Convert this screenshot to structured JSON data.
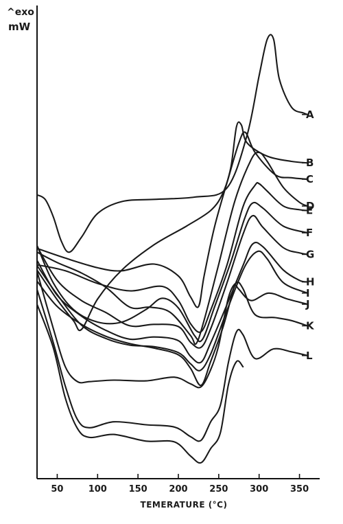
{
  "chart_data": {
    "type": "line",
    "ylabel": "^exo mW",
    "ylabel_line1": "^exo",
    "ylabel_line2": "mW",
    "xlabel": "TEMERATURE (°C)",
    "x_ticks": [
      50,
      100,
      150,
      200,
      250,
      300,
      350
    ],
    "xlim": [
      25,
      375
    ],
    "y_ticks_labeled": false,
    "grid": false,
    "legend": "labels at right end of each curve",
    "series": [
      {
        "name": "A",
        "points": [
          [
            25,
            -0.55
          ],
          [
            35,
            -0.61
          ],
          [
            45,
            -0.84
          ],
          [
            55,
            -1.17
          ],
          [
            65,
            -1.32
          ],
          [
            80,
            -1.12
          ],
          [
            100,
            -0.8
          ],
          [
            130,
            -0.64
          ],
          [
            170,
            -0.61
          ],
          [
            220,
            -0.58
          ],
          [
            260,
            -0.46
          ],
          [
            285,
            0.25
          ],
          [
            300,
            1.05
          ],
          [
            310,
            1.54
          ],
          [
            318,
            1.54
          ],
          [
            325,
            1.01
          ],
          [
            340,
            0.63
          ],
          [
            355,
            0.55
          ],
          [
            360,
            0.53
          ]
        ]
      },
      {
        "name": "B",
        "points": [
          [
            25,
            -1.56
          ],
          [
            50,
            -1.96
          ],
          [
            70,
            -2.24
          ],
          [
            80,
            -2.36
          ],
          [
            100,
            -1.95
          ],
          [
            130,
            -1.56
          ],
          [
            170,
            -1.22
          ],
          [
            210,
            -0.97
          ],
          [
            240,
            -0.76
          ],
          [
            255,
            -0.53
          ],
          [
            265,
            -0.18
          ],
          [
            272,
            0.37
          ],
          [
            278,
            0.39
          ],
          [
            285,
            0.15
          ],
          [
            310,
            -0.03
          ],
          [
            340,
            -0.1
          ],
          [
            360,
            -0.12
          ]
        ]
      },
      {
        "name": "C",
        "points": [
          [
            25,
            -1.27
          ],
          [
            60,
            -1.4
          ],
          [
            100,
            -1.53
          ],
          [
            130,
            -1.57
          ],
          [
            170,
            -1.48
          ],
          [
            200,
            -1.64
          ],
          [
            215,
            -1.92
          ],
          [
            225,
            -2.05
          ],
          [
            232,
            -1.63
          ],
          [
            245,
            -0.97
          ],
          [
            262,
            -0.32
          ],
          [
            275,
            0.15
          ],
          [
            283,
            0.29
          ],
          [
            295,
            0.02
          ],
          [
            320,
            -0.28
          ],
          [
            340,
            -0.32
          ],
          [
            360,
            -0.34
          ]
        ]
      },
      {
        "name": "D",
        "points": [
          [
            25,
            -1.32
          ],
          [
            50,
            -1.46
          ],
          [
            80,
            -1.6
          ],
          [
            110,
            -1.79
          ],
          [
            140,
            -2.06
          ],
          [
            165,
            -2.06
          ],
          [
            190,
            -2.13
          ],
          [
            215,
            -2.44
          ],
          [
            222,
            -2.55
          ],
          [
            232,
            -2.23
          ],
          [
            250,
            -1.48
          ],
          [
            270,
            -0.63
          ],
          [
            290,
            -0.08
          ],
          [
            300,
            0.02
          ],
          [
            310,
            -0.1
          ],
          [
            330,
            -0.45
          ],
          [
            350,
            -0.65
          ],
          [
            360,
            -0.7
          ]
        ]
      },
      {
        "name": "E",
        "points": [
          [
            25,
            -1.49
          ],
          [
            60,
            -1.57
          ],
          [
            100,
            -1.74
          ],
          [
            140,
            -1.84
          ],
          [
            180,
            -1.78
          ],
          [
            200,
            -1.97
          ],
          [
            215,
            -2.28
          ],
          [
            228,
            -2.39
          ],
          [
            240,
            -2.1
          ],
          [
            260,
            -1.5
          ],
          [
            280,
            -0.71
          ],
          [
            295,
            -0.42
          ],
          [
            300,
            -0.4
          ],
          [
            310,
            -0.5
          ],
          [
            330,
            -0.7
          ],
          [
            350,
            -0.75
          ],
          [
            360,
            -0.76
          ]
        ]
      },
      {
        "name": "F",
        "points": [
          [
            25,
            -1.23
          ],
          [
            45,
            -1.73
          ],
          [
            70,
            -2.09
          ],
          [
            100,
            -2.26
          ],
          [
            130,
            -2.26
          ],
          [
            160,
            -2.09
          ],
          [
            180,
            -1.94
          ],
          [
            200,
            -2.07
          ],
          [
            220,
            -2.44
          ],
          [
            230,
            -2.49
          ],
          [
            245,
            -2.05
          ],
          [
            265,
            -1.45
          ],
          [
            282,
            -0.87
          ],
          [
            292,
            -0.66
          ],
          [
            305,
            -0.73
          ],
          [
            330,
            -0.97
          ],
          [
            360,
            -1.06
          ]
        ]
      },
      {
        "name": "G",
        "points": [
          [
            25,
            -1.24
          ],
          [
            50,
            -1.7
          ],
          [
            80,
            -1.97
          ],
          [
            110,
            -2.13
          ],
          [
            140,
            -2.31
          ],
          [
            170,
            -2.29
          ],
          [
            200,
            -2.32
          ],
          [
            215,
            -2.53
          ],
          [
            228,
            -2.6
          ],
          [
            240,
            -2.35
          ],
          [
            260,
            -1.74
          ],
          [
            280,
            -1.08
          ],
          [
            292,
            -0.83
          ],
          [
            305,
            -0.99
          ],
          [
            330,
            -1.26
          ],
          [
            350,
            -1.33
          ],
          [
            360,
            -1.35
          ]
        ]
      },
      {
        "name": "H",
        "points": [
          [
            25,
            -1.43
          ],
          [
            50,
            -1.9
          ],
          [
            80,
            -2.18
          ],
          [
            110,
            -2.37
          ],
          [
            140,
            -2.49
          ],
          [
            170,
            -2.46
          ],
          [
            200,
            -2.51
          ],
          [
            215,
            -2.72
          ],
          [
            228,
            -2.8
          ],
          [
            240,
            -2.54
          ],
          [
            260,
            -2.03
          ],
          [
            280,
            -1.5
          ],
          [
            292,
            -1.21
          ],
          [
            305,
            -1.25
          ],
          [
            330,
            -1.56
          ],
          [
            350,
            -1.7
          ],
          [
            360,
            -1.72
          ]
        ]
      },
      {
        "name": "I",
        "points": [
          [
            25,
            -1.5
          ],
          [
            50,
            -1.89
          ],
          [
            80,
            -2.3
          ],
          [
            110,
            -2.48
          ],
          [
            140,
            -2.57
          ],
          [
            170,
            -2.59
          ],
          [
            200,
            -2.67
          ],
          [
            215,
            -2.82
          ],
          [
            227,
            -2.91
          ],
          [
            240,
            -2.69
          ],
          [
            260,
            -2.11
          ],
          [
            282,
            -1.52
          ],
          [
            298,
            -1.31
          ],
          [
            310,
            -1.41
          ],
          [
            330,
            -1.73
          ],
          [
            360,
            -1.87
          ]
        ]
      },
      {
        "name": "J",
        "points": [
          [
            25,
            -1.71
          ],
          [
            50,
            -2.05
          ],
          [
            80,
            -2.29
          ],
          [
            110,
            -2.45
          ],
          [
            140,
            -2.55
          ],
          [
            170,
            -2.61
          ],
          [
            200,
            -2.7
          ],
          [
            215,
            -2.88
          ],
          [
            228,
            -3.11
          ],
          [
            240,
            -2.79
          ],
          [
            255,
            -2.34
          ],
          [
            265,
            -1.95
          ],
          [
            270,
            -1.77
          ],
          [
            275,
            -1.82
          ],
          [
            290,
            -1.97
          ],
          [
            312,
            -1.87
          ],
          [
            335,
            -1.95
          ],
          [
            360,
            -2.02
          ]
        ]
      },
      {
        "name": "K",
        "points": [
          [
            25,
            -1.58
          ],
          [
            45,
            -2.34
          ],
          [
            60,
            -2.86
          ],
          [
            75,
            -3.06
          ],
          [
            90,
            -3.06
          ],
          [
            120,
            -3.04
          ],
          [
            160,
            -3.05
          ],
          [
            195,
            -3.0
          ],
          [
            215,
            -3.09
          ],
          [
            228,
            -3.13
          ],
          [
            240,
            -2.9
          ],
          [
            250,
            -2.57
          ],
          [
            262,
            -1.93
          ],
          [
            272,
            -1.73
          ],
          [
            280,
            -1.81
          ],
          [
            295,
            -2.16
          ],
          [
            320,
            -2.2
          ],
          [
            340,
            -2.24
          ],
          [
            360,
            -2.31
          ]
        ]
      },
      {
        "name": "L",
        "points": [
          [
            25,
            -1.82
          ],
          [
            45,
            -2.53
          ],
          [
            60,
            -3.12
          ],
          [
            75,
            -3.57
          ],
          [
            90,
            -3.68
          ],
          [
            120,
            -3.6
          ],
          [
            160,
            -3.64
          ],
          [
            195,
            -3.67
          ],
          [
            215,
            -3.8
          ],
          [
            228,
            -3.85
          ],
          [
            240,
            -3.6
          ],
          [
            252,
            -3.38
          ],
          [
            262,
            -2.8
          ],
          [
            272,
            -2.39
          ],
          [
            280,
            -2.43
          ],
          [
            295,
            -2.75
          ],
          [
            318,
            -2.62
          ],
          [
            340,
            -2.66
          ],
          [
            360,
            -2.71
          ]
        ]
      },
      {
        "name": "",
        "points": [
          [
            25,
            -2.02
          ],
          [
            45,
            -2.6
          ],
          [
            60,
            -3.28
          ],
          [
            75,
            -3.69
          ],
          [
            90,
            -3.81
          ],
          [
            120,
            -3.77
          ],
          [
            160,
            -3.86
          ],
          [
            195,
            -3.87
          ],
          [
            215,
            -4.06
          ],
          [
            228,
            -4.15
          ],
          [
            240,
            -3.96
          ],
          [
            252,
            -3.75
          ],
          [
            262,
            -3.1
          ],
          [
            272,
            -2.79
          ],
          [
            280,
            -2.86
          ]
        ]
      }
    ]
  }
}
